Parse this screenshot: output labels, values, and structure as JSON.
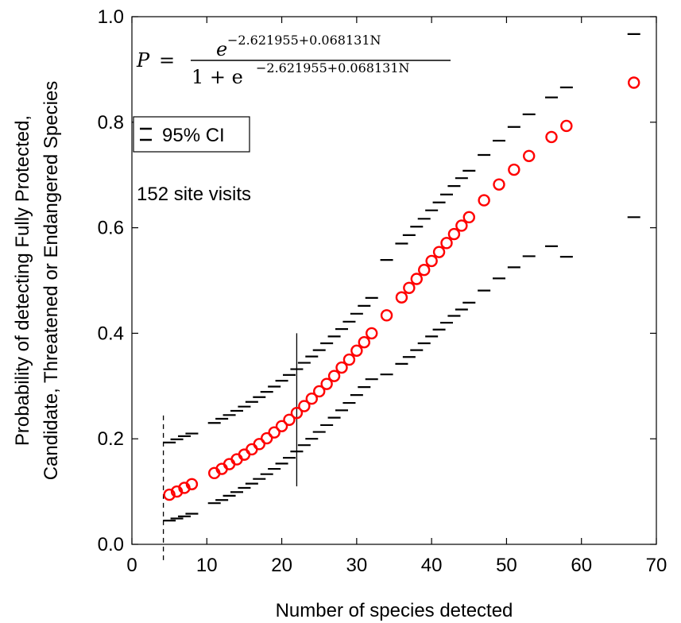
{
  "chart_data": {
    "type": "scatter",
    "xlabel": "Number of species detected",
    "ylabel_line1": "Probability of detecting Fully Protected,",
    "ylabel_line2": "Candidate, Threatened or Endangered Species",
    "xlim": [
      0,
      70
    ],
    "ylim": [
      0,
      1.0
    ],
    "x_ticks": [
      "0",
      "10",
      "20",
      "30",
      "40",
      "50",
      "60",
      "70"
    ],
    "y_ticks": [
      "0.0",
      "0.2",
      "0.4",
      "0.6",
      "0.8",
      "1.0"
    ],
    "grid": false,
    "x": [
      5,
      6,
      7,
      8,
      11,
      12,
      13,
      14,
      15,
      16,
      17,
      18,
      19,
      20,
      21,
      22,
      23,
      24,
      25,
      26,
      27,
      28,
      29,
      30,
      31,
      32,
      34,
      36,
      37,
      38,
      39,
      40,
      41,
      42,
      43,
      44,
      45,
      47,
      49,
      51,
      53,
      56,
      58,
      67
    ],
    "series": [
      {
        "values": [
          0.094,
          0.1,
          0.107,
          0.114,
          0.135,
          0.143,
          0.152,
          0.161,
          0.17,
          0.18,
          0.19,
          0.201,
          0.212,
          0.224,
          0.236,
          0.249,
          0.262,
          0.276,
          0.29,
          0.304,
          0.319,
          0.335,
          0.35,
          0.367,
          0.383,
          0.4,
          0.434,
          0.468,
          0.486,
          0.503,
          0.52,
          0.537,
          0.554,
          0.571,
          0.588,
          0.604,
          0.62,
          0.652,
          0.682,
          0.71,
          0.736,
          0.772,
          0.793,
          0.875
        ],
        "color": "#ff0000",
        "marker": "open-circle"
      },
      {
        "values": [
          0.193,
          0.199,
          0.205,
          0.21,
          0.23,
          0.238,
          0.245,
          0.253,
          0.261,
          0.27,
          0.279,
          0.289,
          0.299,
          0.31,
          0.321,
          0.332,
          0.344,
          0.356,
          0.368,
          0.381,
          0.394,
          0.408,
          0.422,
          0.437,
          0.452,
          0.467,
          0.539,
          0.57,
          0.586,
          0.602,
          0.617,
          0.633,
          0.648,
          0.663,
          0.679,
          0.694,
          0.708,
          0.738,
          0.765,
          0.791,
          0.815,
          0.847,
          0.866,
          0.967
        ],
        "color": "#000000",
        "marker": "dash"
      },
      {
        "values": [
          0.045,
          0.049,
          0.053,
          0.058,
          0.078,
          0.084,
          0.092,
          0.099,
          0.107,
          0.115,
          0.124,
          0.133,
          0.143,
          0.153,
          0.164,
          0.176,
          0.188,
          0.2,
          0.213,
          0.226,
          0.24,
          0.254,
          0.268,
          0.283,
          0.298,
          0.313,
          0.322,
          0.342,
          0.355,
          0.368,
          0.381,
          0.394,
          0.407,
          0.42,
          0.433,
          0.445,
          0.458,
          0.481,
          0.504,
          0.525,
          0.546,
          0.565,
          0.545,
          0.62
        ]
      }
    ],
    "vlines": [
      {
        "x": 4.2,
        "y0": -0.03,
        "y1": 0.25,
        "style": "dashed"
      },
      {
        "x": 22,
        "y0": 0.11,
        "y1": 0.4,
        "style": "solid"
      }
    ]
  },
  "annotations": {
    "formula_p": "P",
    "formula_eq": "=",
    "formula_num_base": "e",
    "formula_num_exp": "−2.621955+0.068131N",
    "formula_den_prefix": "1 + e",
    "formula_den_exp": "−2.621955+0.068131N",
    "ci_label": "95% CI",
    "site_visits": "152 site visits"
  },
  "colors": {
    "estimate": "#ff0000",
    "ci": "#000000"
  }
}
